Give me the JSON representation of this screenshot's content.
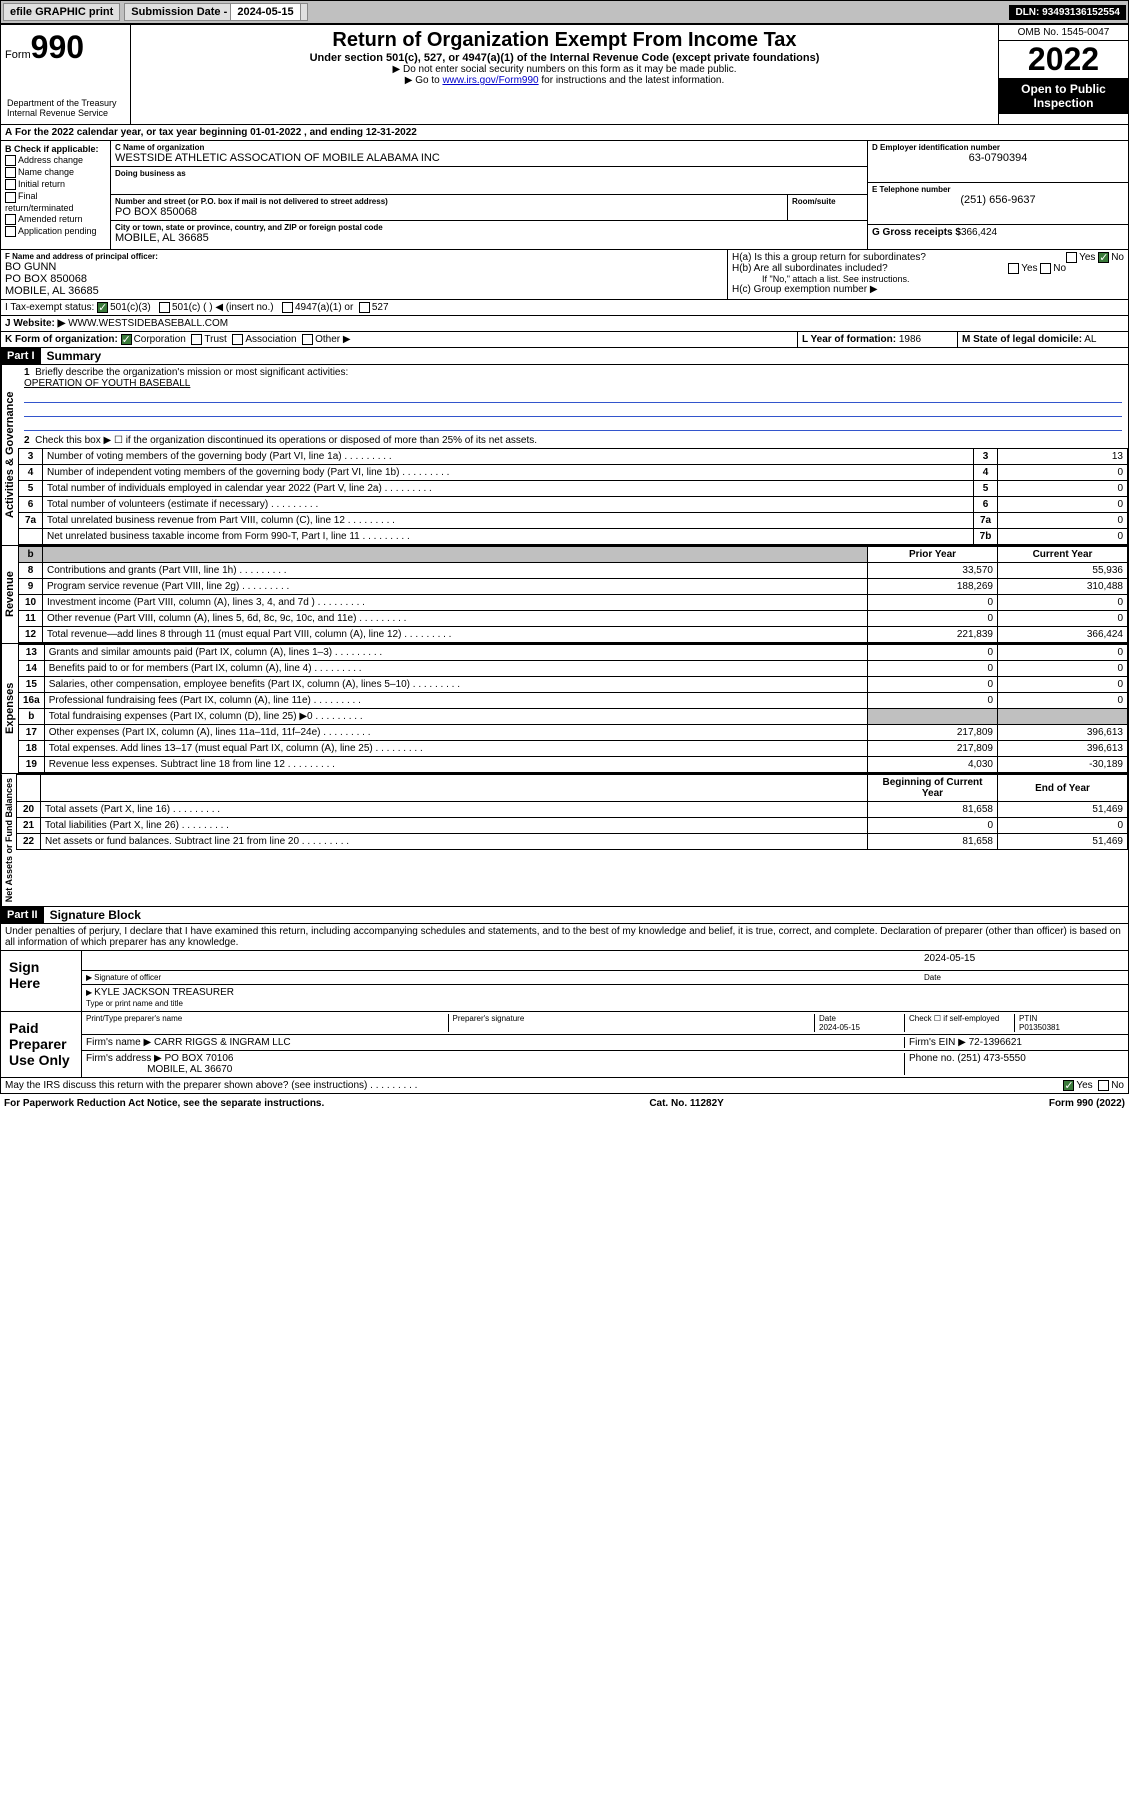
{
  "topbar": {
    "efile": "efile GRAPHIC print",
    "subdate_lbl": "Submission Date - ",
    "subdate": "2024-05-15",
    "dln": "DLN: 93493136152554"
  },
  "header": {
    "form": "Form",
    "num": "990",
    "dept": "Department of the Treasury\nInternal Revenue Service",
    "title": "Return of Organization Exempt From Income Tax",
    "sub": "Under section 501(c), 527, or 4947(a)(1) of the Internal Revenue Code (except private foundations)",
    "note1": "▶ Do not enter social security numbers on this form as it may be made public.",
    "note2_pre": "▶ Go to ",
    "note2_link": "www.irs.gov/Form990",
    "note2_post": " for instructions and the latest information.",
    "omb": "OMB No. 1545-0047",
    "year": "2022",
    "inspect": "Open to Public Inspection"
  },
  "A": {
    "text": "For the 2022 calendar year, or tax year beginning ",
    "begin": "01-01-2022",
    "mid": " , and ending ",
    "end": "12-31-2022"
  },
  "B": {
    "hdr": "B Check if applicable:",
    "items": [
      "Address change",
      "Name change",
      "Initial return",
      "Final return/terminated",
      "Amended return",
      "Application pending"
    ]
  },
  "C": {
    "name_lbl": "C Name of organization",
    "name": "WESTSIDE ATHLETIC ASSOCATION OF MOBILE ALABAMA INC",
    "dba_lbl": "Doing business as",
    "addr_lbl": "Number and street (or P.O. box if mail is not delivered to street address)",
    "room_lbl": "Room/suite",
    "addr": "PO BOX 850068",
    "city_lbl": "City or town, state or province, country, and ZIP or foreign postal code",
    "city": "MOBILE, AL  36685"
  },
  "D": {
    "lbl": "D Employer identification number",
    "val": "63-0790394"
  },
  "E": {
    "lbl": "E Telephone number",
    "val": "(251) 656-9637"
  },
  "G": {
    "lbl": "G Gross receipts $",
    "val": "366,424"
  },
  "F": {
    "lbl": "F  Name and address of principal officer:",
    "name": "BO GUNN",
    "addr": "PO BOX 850068",
    "city": "MOBILE, AL  36685"
  },
  "H": {
    "a": "H(a)  Is this a group return for subordinates?",
    "b": "H(b)  Are all subordinates included?",
    "bnote": "If \"No,\" attach a list. See instructions.",
    "c": "H(c)  Group exemption number ▶",
    "yes": "Yes",
    "no": "No"
  },
  "I": {
    "lbl": "I   Tax-exempt status:",
    "o1": "501(c)(3)",
    "o2": "501(c) (  ) ◀ (insert no.)",
    "o3": "4947(a)(1) or",
    "o4": "527"
  },
  "J": {
    "lbl": "J   Website: ▶",
    "val": "WWW.WESTSIDEBASEBALL.COM"
  },
  "K": {
    "lbl": "K Form of organization:",
    "o1": "Corporation",
    "o2": "Trust",
    "o3": "Association",
    "o4": "Other ▶"
  },
  "L": {
    "lbl": "L Year of formation:",
    "val": "1986"
  },
  "M": {
    "lbl": "M State of legal domicile:",
    "val": "AL"
  },
  "part1": {
    "bar": "Part I",
    "title": "Summary"
  },
  "sum": {
    "l1": "Briefly describe the organization's mission or most significant activities:",
    "l1v": "OPERATION OF YOUTH BASEBALL",
    "l2": "Check this box ▶ ☐  if the organization discontinued its operations or disposed of more than 25% of its net assets.",
    "rows_gov": [
      {
        "n": "3",
        "t": "Number of voting members of the governing body (Part VI, line 1a)",
        "k": "3",
        "v": "13"
      },
      {
        "n": "4",
        "t": "Number of independent voting members of the governing body (Part VI, line 1b)",
        "k": "4",
        "v": "0"
      },
      {
        "n": "5",
        "t": "Total number of individuals employed in calendar year 2022 (Part V, line 2a)",
        "k": "5",
        "v": "0"
      },
      {
        "n": "6",
        "t": "Total number of volunteers (estimate if necessary)",
        "k": "6",
        "v": "0"
      },
      {
        "n": "7a",
        "t": "Total unrelated business revenue from Part VIII, column (C), line 12",
        "k": "7a",
        "v": "0"
      },
      {
        "n": "",
        "t": "Net unrelated business taxable income from Form 990-T, Part I, line 11",
        "k": "7b",
        "v": "0"
      }
    ],
    "hdr_b": "b",
    "hdr_prior": "Prior Year",
    "hdr_curr": "Current Year",
    "rows_rev": [
      {
        "n": "8",
        "t": "Contributions and grants (Part VIII, line 1h)",
        "p": "33,570",
        "c": "55,936"
      },
      {
        "n": "9",
        "t": "Program service revenue (Part VIII, line 2g)",
        "p": "188,269",
        "c": "310,488"
      },
      {
        "n": "10",
        "t": "Investment income (Part VIII, column (A), lines 3, 4, and 7d )",
        "p": "0",
        "c": "0"
      },
      {
        "n": "11",
        "t": "Other revenue (Part VIII, column (A), lines 5, 6d, 8c, 9c, 10c, and 11e)",
        "p": "0",
        "c": "0"
      },
      {
        "n": "12",
        "t": "Total revenue—add lines 8 through 11 (must equal Part VIII, column (A), line 12)",
        "p": "221,839",
        "c": "366,424"
      }
    ],
    "rows_exp": [
      {
        "n": "13",
        "t": "Grants and similar amounts paid (Part IX, column (A), lines 1–3)",
        "p": "0",
        "c": "0"
      },
      {
        "n": "14",
        "t": "Benefits paid to or for members (Part IX, column (A), line 4)",
        "p": "0",
        "c": "0"
      },
      {
        "n": "15",
        "t": "Salaries, other compensation, employee benefits (Part IX, column (A), lines 5–10)",
        "p": "0",
        "c": "0"
      },
      {
        "n": "16a",
        "t": "Professional fundraising fees (Part IX, column (A), line 11e)",
        "p": "0",
        "c": "0"
      },
      {
        "n": "b",
        "t": "Total fundraising expenses (Part IX, column (D), line 25) ▶0",
        "p": "",
        "c": "",
        "shade": true
      },
      {
        "n": "17",
        "t": "Other expenses (Part IX, column (A), lines 11a–11d, 11f–24e)",
        "p": "217,809",
        "c": "396,613"
      },
      {
        "n": "18",
        "t": "Total expenses. Add lines 13–17 (must equal Part IX, column (A), line 25)",
        "p": "217,809",
        "c": "396,613"
      },
      {
        "n": "19",
        "t": "Revenue less expenses. Subtract line 18 from line 12",
        "p": "4,030",
        "c": "-30,189"
      }
    ],
    "hdr_begin": "Beginning of Current Year",
    "hdr_end": "End of Year",
    "rows_na": [
      {
        "n": "20",
        "t": "Total assets (Part X, line 16)",
        "p": "81,658",
        "c": "51,469"
      },
      {
        "n": "21",
        "t": "Total liabilities (Part X, line 26)",
        "p": "0",
        "c": "0"
      },
      {
        "n": "22",
        "t": "Net assets or fund balances. Subtract line 21 from line 20",
        "p": "81,658",
        "c": "51,469"
      }
    ],
    "side_gov": "Activities & Governance",
    "side_rev": "Revenue",
    "side_exp": "Expenses",
    "side_na": "Net Assets or Fund Balances"
  },
  "part2": {
    "bar": "Part II",
    "title": "Signature Block"
  },
  "sigblock": {
    "decl": "Under penalties of perjury, I declare that I have examined this return, including accompanying schedules and statements, and to the best of my knowledge and belief, it is true, correct, and complete. Declaration of preparer (other than officer) is based on all information of which preparer has any knowledge.",
    "signhere": "Sign Here",
    "sig_lbl": "Signature of officer",
    "date_lbl": "Date",
    "date": "2024-05-15",
    "name": "KYLE JACKSON  TREASURER",
    "name_lbl": "Type or print name and title",
    "paid": "Paid Preparer Use Only",
    "prep_name_lbl": "Print/Type preparer's name",
    "prep_sig_lbl": "Preparer's signature",
    "prep_date_lbl": "Date",
    "prep_date": "2024-05-15",
    "check_lbl": "Check ☐ if self-employed",
    "ptin_lbl": "PTIN",
    "ptin": "P01350381",
    "firm_name_lbl": "Firm's name   ▶",
    "firm_name": "CARR RIGGS & INGRAM LLC",
    "firm_ein_lbl": "Firm's EIN ▶",
    "firm_ein": "72-1396621",
    "firm_addr_lbl": "Firm's address ▶",
    "firm_addr": "PO BOX 70106",
    "firm_city": "MOBILE, AL  36670",
    "phone_lbl": "Phone no.",
    "phone": "(251) 473-5550",
    "discuss": "May the IRS discuss this return with the preparer shown above? (see instructions)",
    "yes": "Yes",
    "no": "No"
  },
  "footer": {
    "l": "For Paperwork Reduction Act Notice, see the separate instructions.",
    "c": "Cat. No. 11282Y",
    "r": "Form 990 (2022)"
  }
}
